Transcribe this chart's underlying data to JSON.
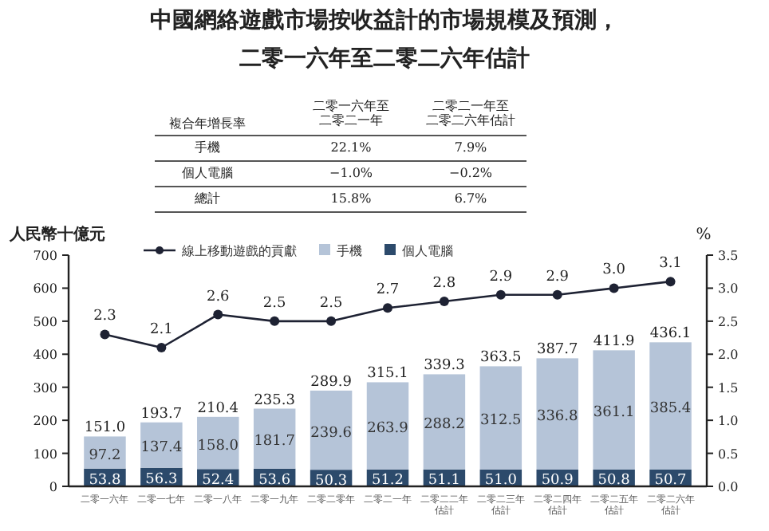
{
  "chart_data": {
    "type": "bar",
    "title": "中國網絡遊戲市場按收益計的市場規模及預測，",
    "subtitle": "二零一六年至二零二六年估計",
    "annotations": [
      "複合年增長率",
      "二零一六年至二零二一年",
      "二零二一年至二零二六年估計",
      "手機",
      "22.1%",
      "7.9%",
      "個人電腦",
      "−1.0%",
      "−0.2%",
      "總計",
      "15.8%",
      "6.7%"
    ],
    "ylabel": "人民幣十億元",
    "y2label": "%",
    "categories": [
      "二零一六年",
      "二零一七年",
      "二零一八年",
      "二零一九年",
      "二零二零年",
      "二零二一年",
      "二零二二年估計",
      "二零二三年估計",
      "二零二四年估計",
      "二零二五年估計",
      "二零二六年估計"
    ],
    "stacked": true,
    "series": [
      {
        "name": "個人電腦",
        "color": "#2c4a6b",
        "values": [
          53.8,
          56.3,
          52.4,
          53.6,
          50.3,
          51.2,
          51.1,
          51.0,
          50.9,
          50.8,
          50.7
        ],
        "value_labels": [
          "53.8",
          "56.3",
          "52.4",
          "53.6",
          "50.3",
          "51.2",
          "51.1",
          "51.0",
          "50.9",
          "50.8",
          "50.7"
        ]
      },
      {
        "name": "手機",
        "color": "#b5c4d8",
        "values": [
          97.2,
          137.4,
          158.0,
          181.7,
          239.6,
          263.9,
          288.2,
          312.5,
          336.8,
          361.1,
          385.4
        ],
        "value_labels": [
          "97.2",
          "137.4",
          "158.0",
          "181.7",
          "239.6",
          "263.9",
          "288.2",
          "312.5",
          "336.8",
          "361.1",
          "385.4"
        ]
      },
      {
        "name": "線上移動遊戲的貢獻",
        "type": "line",
        "axis": "y2",
        "color": "#1e2233",
        "values": [
          2.3,
          2.1,
          2.6,
          2.5,
          2.5,
          2.7,
          2.8,
          2.9,
          2.9,
          3.0,
          3.1
        ],
        "value_labels": [
          "2.3",
          "2.1",
          "2.6",
          "2.5",
          "2.5",
          "2.7",
          "2.8",
          "2.9",
          "2.9",
          "3.0",
          "3.1"
        ]
      }
    ],
    "totals": [
      "151.0",
      "193.7",
      "210.4",
      "235.3",
      "289.9",
      "315.1",
      "339.3",
      "363.5",
      "387.7",
      "411.9",
      "436.1"
    ],
    "marker": "circle",
    "legend": "top",
    "ylim": [
      0,
      700
    ],
    "yticks": [
      0,
      100,
      200,
      300,
      400,
      500,
      600,
      700
    ],
    "y2lim": [
      0,
      3.5
    ],
    "y2ticks": [
      {
        "value": 0,
        "label": "0.0"
      },
      {
        "value": 0.5,
        "label": "0.5"
      },
      {
        "value": 1,
        "label": "1.0"
      },
      {
        "value": 1.5,
        "label": "1.5"
      },
      {
        "value": 2,
        "label": "2.0"
      },
      {
        "value": 2.5,
        "label": "2.5"
      },
      {
        "value": 3,
        "label": "3.0"
      },
      {
        "value": 3.5,
        "label": "3.5"
      }
    ]
  }
}
